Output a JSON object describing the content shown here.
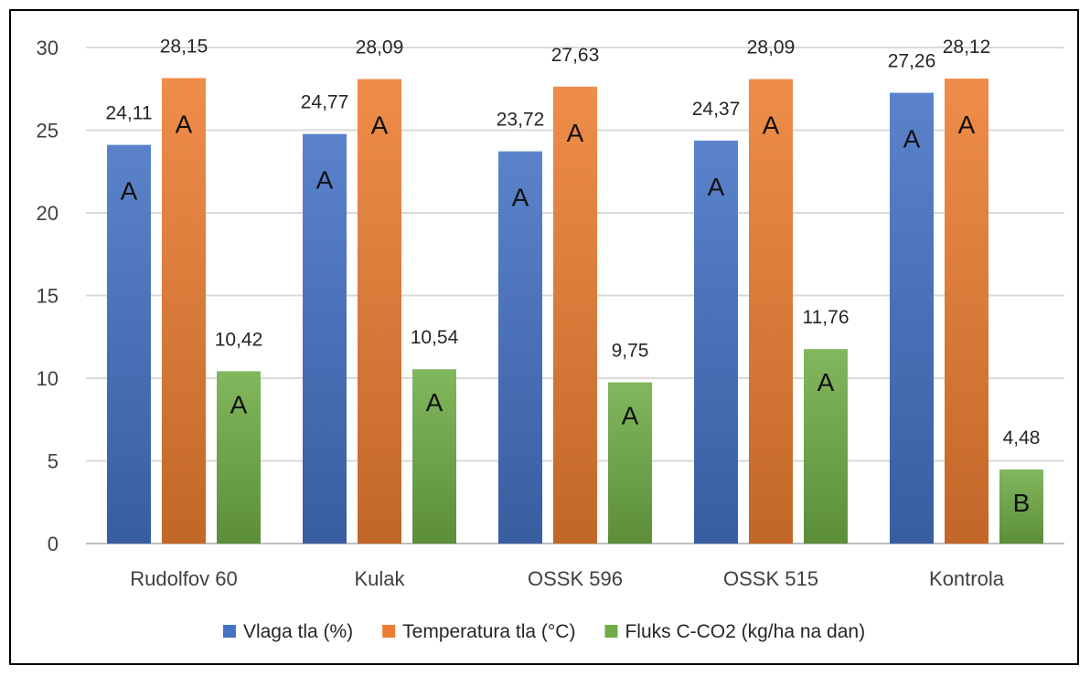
{
  "chart_data": {
    "type": "bar",
    "categories": [
      "Rudolfov 60",
      "Kulak",
      "OSSK 596",
      "OSSK 515",
      "Kontrola"
    ],
    "series": [
      {
        "name": "Vlaga tla (%)",
        "values": [
          24.11,
          24.77,
          23.72,
          24.37,
          27.26
        ],
        "labels": [
          "24,11",
          "24,77",
          "23,72",
          "24,37",
          "27,26"
        ],
        "groups": [
          "A",
          "A",
          "A",
          "A",
          "A"
        ],
        "color": "#4472C4"
      },
      {
        "name": "Temperatura tla (°C)",
        "values": [
          28.15,
          28.09,
          27.63,
          28.09,
          28.12
        ],
        "labels": [
          "28,15",
          "28,09",
          "27,63",
          "28,09",
          "28,12"
        ],
        "groups": [
          "A",
          "A",
          "A",
          "A",
          "A"
        ],
        "color": "#ED7D31"
      },
      {
        "name": "Fluks C-CO2 (kg/ha na dan)",
        "values": [
          10.42,
          10.54,
          9.75,
          11.76,
          4.48
        ],
        "labels": [
          "10,42",
          "10,54",
          "9,75",
          "11,76",
          "4,48"
        ],
        "groups": [
          "A",
          "A",
          "A",
          "A",
          "B"
        ],
        "color": "#70AD47"
      }
    ],
    "yticks": [
      "0",
      "5",
      "10",
      "15",
      "20",
      "25",
      "30"
    ],
    "ylim": [
      0,
      30
    ],
    "grid": true,
    "legend": "bottom",
    "title": "",
    "xlabel": "",
    "ylabel": ""
  }
}
